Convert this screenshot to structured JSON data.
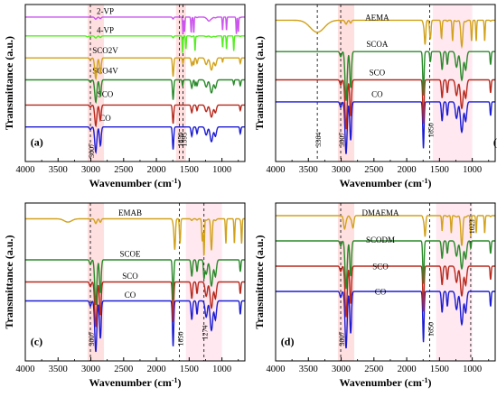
{
  "colors": {
    "CO": "#1c1cd4",
    "SCO": "#b8281c",
    "SCO2V": "#d2a21c",
    "SCO4V": "#2a8a2a",
    "4-VP": "#55ee22",
    "2-VP": "#cc55ee",
    "AEMA": "#d2a21c",
    "SCOA": "#2a8a2a",
    "EMAB": "#d2a21c",
    "SCOE": "#2a8a2a",
    "DMAEMA": "#d2a21c",
    "SCODM": "#2a8a2a"
  },
  "chart_data": [
    {
      "type": "line",
      "panel_label": "(a)",
      "xlabel": "Wavenumber (cm",
      "xlabel_sup": "-1",
      "xlabel_end": ")",
      "ylabel": "Transmittance (a.u.)",
      "xlim": [
        4000,
        650
      ],
      "x_ticks": [
        "4000",
        "3500",
        "3000",
        "2500",
        "2000",
        "1500",
        "1000"
      ],
      "series": [
        {
          "name": "CO",
          "color_key": "CO"
        },
        {
          "name": "SCO",
          "color_key": "SCO"
        },
        {
          "name": "SCO4V",
          "color_key": "SCO4V"
        },
        {
          "name": "SCO2V",
          "color_key": "SCO2V"
        },
        {
          "name": "4-VP",
          "color_key": "4-VP"
        },
        {
          "name": "2-VP",
          "color_key": "2-VP"
        }
      ],
      "annotations": [
        {
          "text": "3007",
          "x": 3007
        },
        {
          "text": "1650",
          "x": 1650
        },
        {
          "text": "1595",
          "x": 1595
        }
      ]
    },
    {
      "type": "line",
      "panel_label": "(b)",
      "xlabel": "Wavenumber (cm",
      "xlabel_sup": "-1",
      "xlabel_end": ")",
      "ylabel": "Transmittance (a.u.)",
      "xlim": [
        4000,
        650
      ],
      "x_ticks": [
        "4000",
        "3500",
        "3000",
        "2500",
        "2000",
        "1500",
        "1000"
      ],
      "series": [
        {
          "name": "CO",
          "color_key": "CO"
        },
        {
          "name": "SCO",
          "color_key": "SCO"
        },
        {
          "name": "SCOA",
          "color_key": "SCOA"
        },
        {
          "name": "AEMA",
          "color_key": "AEMA"
        }
      ],
      "annotations": [
        {
          "text": "3364",
          "x": 3364
        },
        {
          "text": "3007",
          "x": 3007
        },
        {
          "text": "1650",
          "x": 1650
        }
      ]
    },
    {
      "type": "line",
      "panel_label": "(c)",
      "xlabel": "Wavenumber (cm",
      "xlabel_sup": "-1",
      "xlabel_end": ")",
      "ylabel": "Transmittance (a.u.)",
      "xlim": [
        4000,
        650
      ],
      "x_ticks": [
        "4000",
        "3500",
        "3000",
        "2500",
        "2000",
        "1500",
        "1000"
      ],
      "series": [
        {
          "name": "CO",
          "color_key": "CO"
        },
        {
          "name": "SCO",
          "color_key": "SCO"
        },
        {
          "name": "SCOE",
          "color_key": "SCOE"
        },
        {
          "name": "EMAB",
          "color_key": "EMAB"
        }
      ],
      "annotations": [
        {
          "text": "3007",
          "x": 3007
        },
        {
          "text": "1650",
          "x": 1650
        },
        {
          "text": "1274",
          "x": 1274
        }
      ]
    },
    {
      "type": "line",
      "panel_label": "(d)",
      "xlabel": "Wavenumber (cm",
      "xlabel_sup": "-1",
      "xlabel_end": ")",
      "ylabel": "Transmittance (a.u.)",
      "xlim": [
        4000,
        650
      ],
      "x_ticks": [
        "4000",
        "3500",
        "3000",
        "2500",
        "2000",
        "1500",
        "1000"
      ],
      "series": [
        {
          "name": "CO",
          "color_key": "CO"
        },
        {
          "name": "SCO",
          "color_key": "SCO"
        },
        {
          "name": "SCODM",
          "color_key": "SCODM"
        },
        {
          "name": "DMAEMA",
          "color_key": "DMAEMA"
        }
      ],
      "annotations": [
        {
          "text": "3007",
          "x": 3007
        },
        {
          "text": "1650",
          "x": 1650
        },
        {
          "text": "1023",
          "x": 1023
        }
      ]
    }
  ]
}
